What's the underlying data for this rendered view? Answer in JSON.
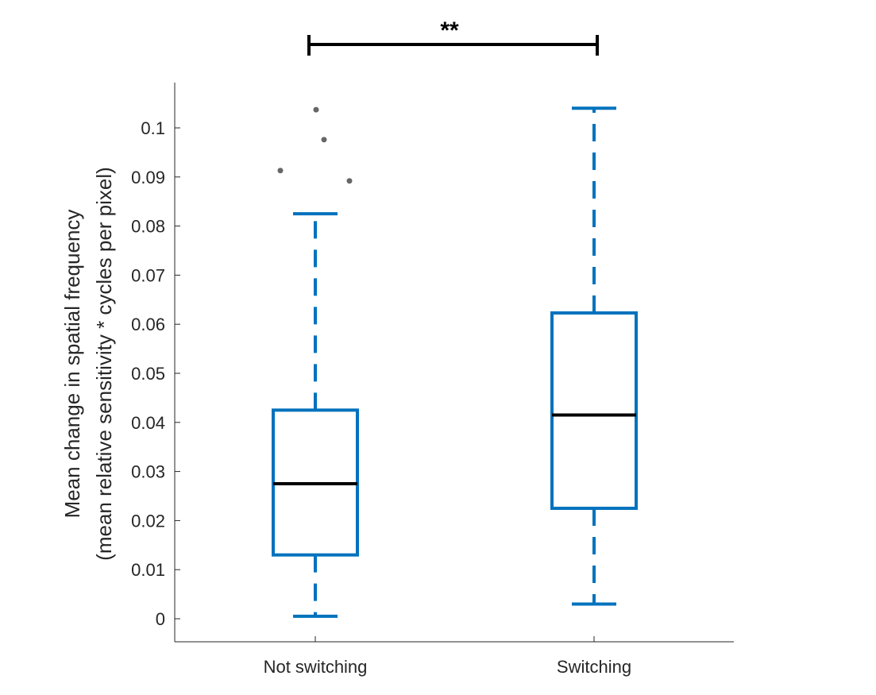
{
  "chart_data": {
    "type": "box",
    "categories": [
      "Not switching",
      "Switching"
    ],
    "series": [
      {
        "category": "Not switching",
        "whisker_low": 0.0005,
        "q1": 0.013,
        "median": 0.0275,
        "q3": 0.0425,
        "whisker_high": 0.0825,
        "outliers": [
          0.1037,
          0.0976,
          0.0913,
          0.0892
        ]
      },
      {
        "category": "Switching",
        "whisker_low": 0.003,
        "q1": 0.0225,
        "median": 0.0415,
        "q3": 0.0623,
        "whisker_high": 0.104,
        "outliers": []
      }
    ],
    "ylabel_line1": "Mean change in spatial frequency",
    "ylabel_line2": "(mean relative sensitivity * cycles per pixel)",
    "ylim": [
      -0.005,
      0.109
    ],
    "yticks": [
      0,
      0.01,
      0.02,
      0.03,
      0.04,
      0.05,
      0.06,
      0.07,
      0.08,
      0.09,
      0.1
    ],
    "ytick_labels": [
      "0",
      "0.01",
      "0.02",
      "0.03",
      "0.04",
      "0.05",
      "0.06",
      "0.07",
      "0.08",
      "0.09",
      "0.1"
    ],
    "significance": {
      "label": "**",
      "from": "Not switching",
      "to": "Switching"
    },
    "colors": {
      "box": "#0072BD",
      "median": "#000000",
      "outlier": "#666666",
      "axis": "#262626",
      "bracket": "#000000"
    },
    "grid": false,
    "legend": "none"
  }
}
